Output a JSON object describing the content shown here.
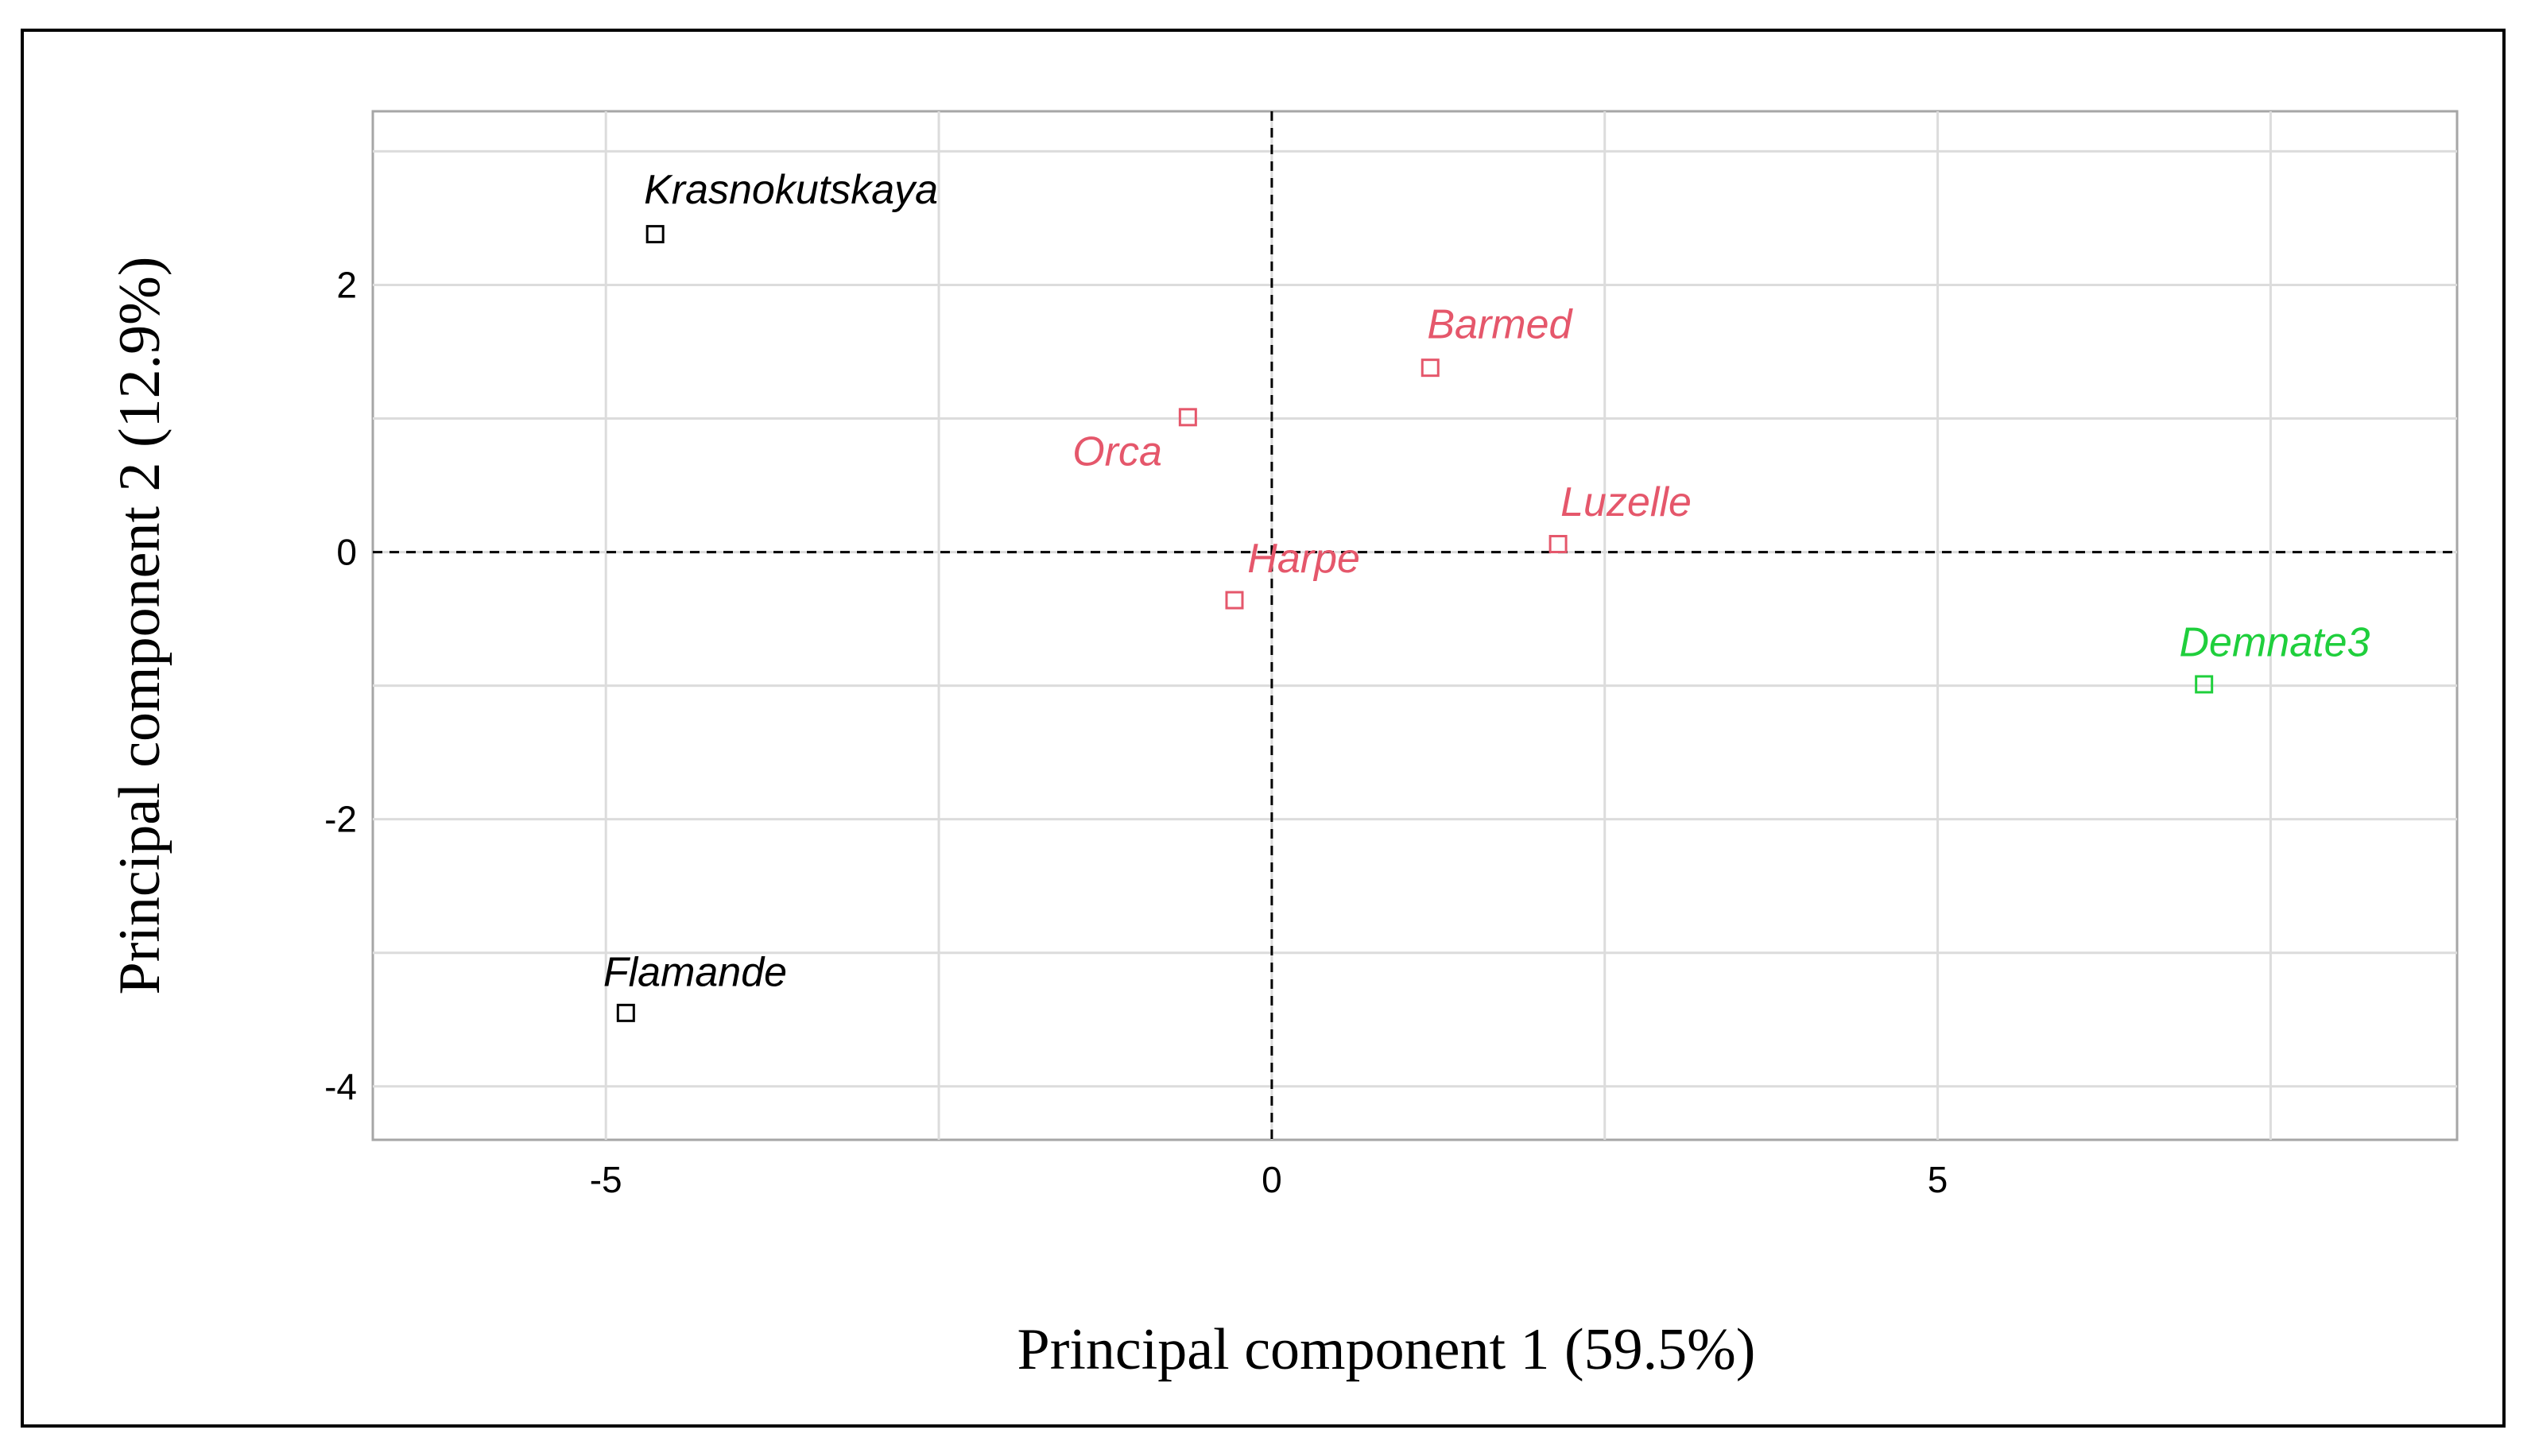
{
  "chart_data": {
    "type": "scatter",
    "xlabel": "Principal component 1 (59.5%)",
    "ylabel": "Principal component 2 (12.9%)",
    "xlim": [
      -6.75,
      8.9
    ],
    "ylim": [
      -4.4,
      3.3
    ],
    "x_ticks": [
      -5,
      0,
      5
    ],
    "y_ticks": [
      -4,
      -2,
      0,
      2
    ],
    "x_tick_labels": [
      "-5",
      "0",
      "5"
    ],
    "y_tick_labels": [
      "-4",
      "-2",
      "0",
      "2"
    ],
    "reference_lines": {
      "x": 0,
      "y": 0,
      "style": "dashed"
    },
    "grid": true,
    "colors": {
      "black": "#000000",
      "red": "#e5576b",
      "green": "#1fcf3c"
    },
    "points": [
      {
        "label": "Krasnokutskaya",
        "x": -4.63,
        "y": 2.38,
        "color": "#000000",
        "label_anchor": "middle",
        "label_dx": 1.02,
        "label_dy": 0.23
      },
      {
        "label": "Flamande",
        "x": -4.85,
        "y": -3.45,
        "color": "#000000",
        "label_anchor": "middle",
        "label_dx": 0.52,
        "label_dy": 0.2
      },
      {
        "label": "Barmed",
        "x": 1.19,
        "y": 1.38,
        "color": "#e5576b",
        "label_anchor": "middle",
        "label_dx": 0.52,
        "label_dy": 0.22
      },
      {
        "label": "Orca",
        "x": -0.63,
        "y": 1.01,
        "color": "#e5576b",
        "label_anchor": "middle",
        "label_dx": -0.53,
        "label_dy": -0.36
      },
      {
        "label": "Luzelle",
        "x": 2.15,
        "y": 0.06,
        "color": "#e5576b",
        "label_anchor": "middle",
        "label_dx": 0.51,
        "label_dy": 0.21
      },
      {
        "label": "Harpe",
        "x": -0.28,
        "y": -0.36,
        "color": "#e5576b",
        "label_anchor": "middle",
        "label_dx": 0.52,
        "label_dy": 0.21
      },
      {
        "label": "Demnate3",
        "x": 7.0,
        "y": -0.99,
        "color": "#1fcf3c",
        "label_anchor": "middle",
        "label_dx": 0.53,
        "label_dy": 0.21
      }
    ]
  }
}
